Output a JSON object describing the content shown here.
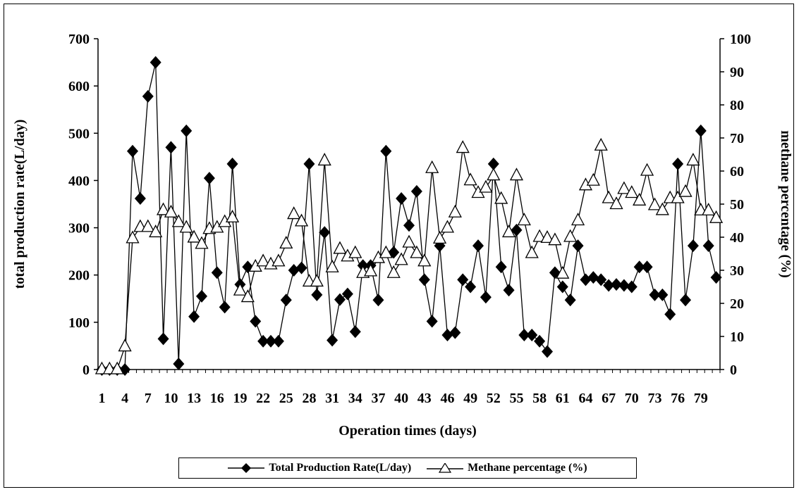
{
  "chart_data": {
    "type": "line",
    "xlabel": "Operation times (days)",
    "ylabel_left": "total production rate(L/day)",
    "ylabel_right": "methane percentage (%)",
    "x": [
      1,
      2,
      3,
      4,
      5,
      6,
      7,
      8,
      9,
      10,
      11,
      12,
      13,
      14,
      15,
      16,
      17,
      18,
      19,
      20,
      21,
      22,
      23,
      24,
      25,
      26,
      27,
      28,
      29,
      30,
      31,
      32,
      33,
      34,
      35,
      36,
      37,
      38,
      39,
      40,
      41,
      42,
      43,
      44,
      45,
      46,
      47,
      48,
      49,
      50,
      51,
      52,
      53,
      54,
      55,
      56,
      57,
      58,
      59,
      60,
      61,
      62,
      63,
      64,
      65,
      66,
      67,
      68,
      69,
      70,
      71,
      72,
      73,
      74,
      75,
      76,
      77,
      78,
      79,
      80,
      81
    ],
    "xticks": [
      "1",
      "4",
      "7",
      "10",
      "13",
      "16",
      "19",
      "22",
      "25",
      "28",
      "31",
      "34",
      "37",
      "40",
      "43",
      "46",
      "49",
      "52",
      "55",
      "58",
      "61",
      "64",
      "67",
      "70",
      "73",
      "76",
      "79"
    ],
    "ylim_left": [
      0,
      700
    ],
    "yticks_left": [
      "0",
      "100",
      "200",
      "300",
      "400",
      "500",
      "600",
      "700"
    ],
    "ylim_right": [
      0,
      100
    ],
    "yticks_right": [
      "0",
      "10",
      "20",
      "30",
      "40",
      "50",
      "60",
      "70",
      "80",
      "90",
      "100"
    ],
    "legend_position": "bottom",
    "series": [
      {
        "name": "Total Production Rate(L/day)",
        "axis": "left",
        "marker": "diamond",
        "color": "#000000",
        "values": [
          0,
          0,
          0,
          0,
          462,
          362,
          578,
          650,
          65,
          470,
          12,
          505,
          112,
          155,
          405,
          205,
          132,
          435,
          180,
          217,
          102,
          60,
          60,
          60,
          147,
          210,
          215,
          435,
          158,
          290,
          62,
          148,
          160,
          80,
          220,
          220,
          147,
          462,
          248,
          362,
          305,
          377,
          190,
          102,
          262,
          73,
          78,
          190,
          175,
          262,
          153,
          435,
          217,
          168,
          295,
          73,
          73,
          60,
          38,
          205,
          175,
          147,
          262,
          190,
          195,
          190,
          178,
          180,
          178,
          175,
          217,
          217,
          158,
          158,
          117,
          435,
          147,
          262,
          505,
          262,
          195
        ]
      },
      {
        "name": "Methane percentage (%)",
        "axis": "right",
        "marker": "triangle",
        "color": "#000000",
        "values": [
          0,
          0,
          0,
          6.9,
          39.6,
          43,
          43,
          41.4,
          48.1,
          47.4,
          44.5,
          42.8,
          39.8,
          37.9,
          42.4,
          42.8,
          44.5,
          45.9,
          23.8,
          21.8,
          31,
          32.6,
          31.7,
          32.6,
          38,
          46.9,
          44.7,
          26.5,
          26.5,
          63.1,
          30.8,
          36.4,
          34.1,
          35.1,
          29.1,
          29.6,
          33.6,
          35.1,
          29.1,
          33,
          38.3,
          35.1,
          32.6,
          60.8,
          39.5,
          42.8,
          47.4,
          66.9,
          57.1,
          53.3,
          54.9,
          58.6,
          51.5,
          41.4,
          58.6,
          45,
          35.1,
          40,
          39.7,
          39,
          28.9,
          40,
          45,
          55.6,
          57,
          67.6,
          51.7,
          49.9,
          54.5,
          53.3,
          51,
          60,
          49.6,
          48.1,
          51.7,
          51.7,
          53.6,
          63.1,
          48,
          48,
          45.7
        ]
      }
    ]
  }
}
